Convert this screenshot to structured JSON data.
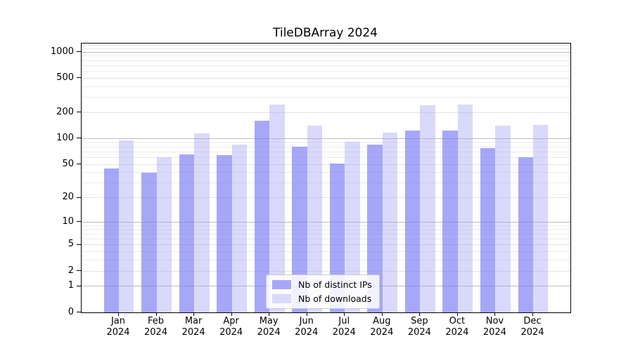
{
  "chart_data": {
    "type": "bar",
    "title": "TileDBArray 2024",
    "xlabel": "",
    "ylabel": "",
    "categories": [
      "Jan",
      "Feb",
      "Mar",
      "Apr",
      "May",
      "Jun",
      "Jul",
      "Aug",
      "Sep",
      "Oct",
      "Nov",
      "Dec"
    ],
    "year_label": "2024",
    "series": [
      {
        "name": "Nb of distinct IPs",
        "values": [
          45,
          40,
          65,
          64,
          160,
          80,
          51,
          85,
          125,
          125,
          78,
          60
        ],
        "bar_color": "rgba(120,120,245,0.65)",
        "legend_color": "#a7a7f8"
      },
      {
        "name": "Nb of downloads",
        "values": [
          95,
          60,
          114,
          85,
          248,
          140,
          92,
          117,
          245,
          250,
          140,
          145
        ],
        "bar_color": "rgba(160,160,245,0.40)",
        "legend_color": "#d9d9fb"
      }
    ],
    "scale": "log1p",
    "ylim": [
      0,
      1258
    ],
    "y_ticks": [
      0,
      1,
      2,
      5,
      10,
      20,
      50,
      100,
      200,
      500,
      1000
    ],
    "y_major_ticks": [
      1,
      10,
      100,
      1000
    ],
    "y_minor_gridlines": [
      2,
      3,
      4,
      5,
      6,
      7,
      8,
      9,
      20,
      30,
      40,
      50,
      60,
      70,
      80,
      90,
      200,
      300,
      400,
      500,
      600,
      700,
      800,
      900,
      1100,
      1200
    ],
    "grid": true,
    "legend_position": "lower center"
  },
  "colors": {
    "background": "#ffffff",
    "spine": "#000000",
    "grid_major": "#bdbdbd",
    "grid_minor": "#ebebeb",
    "legend_border": "#cccccc",
    "text": "#000000"
  }
}
